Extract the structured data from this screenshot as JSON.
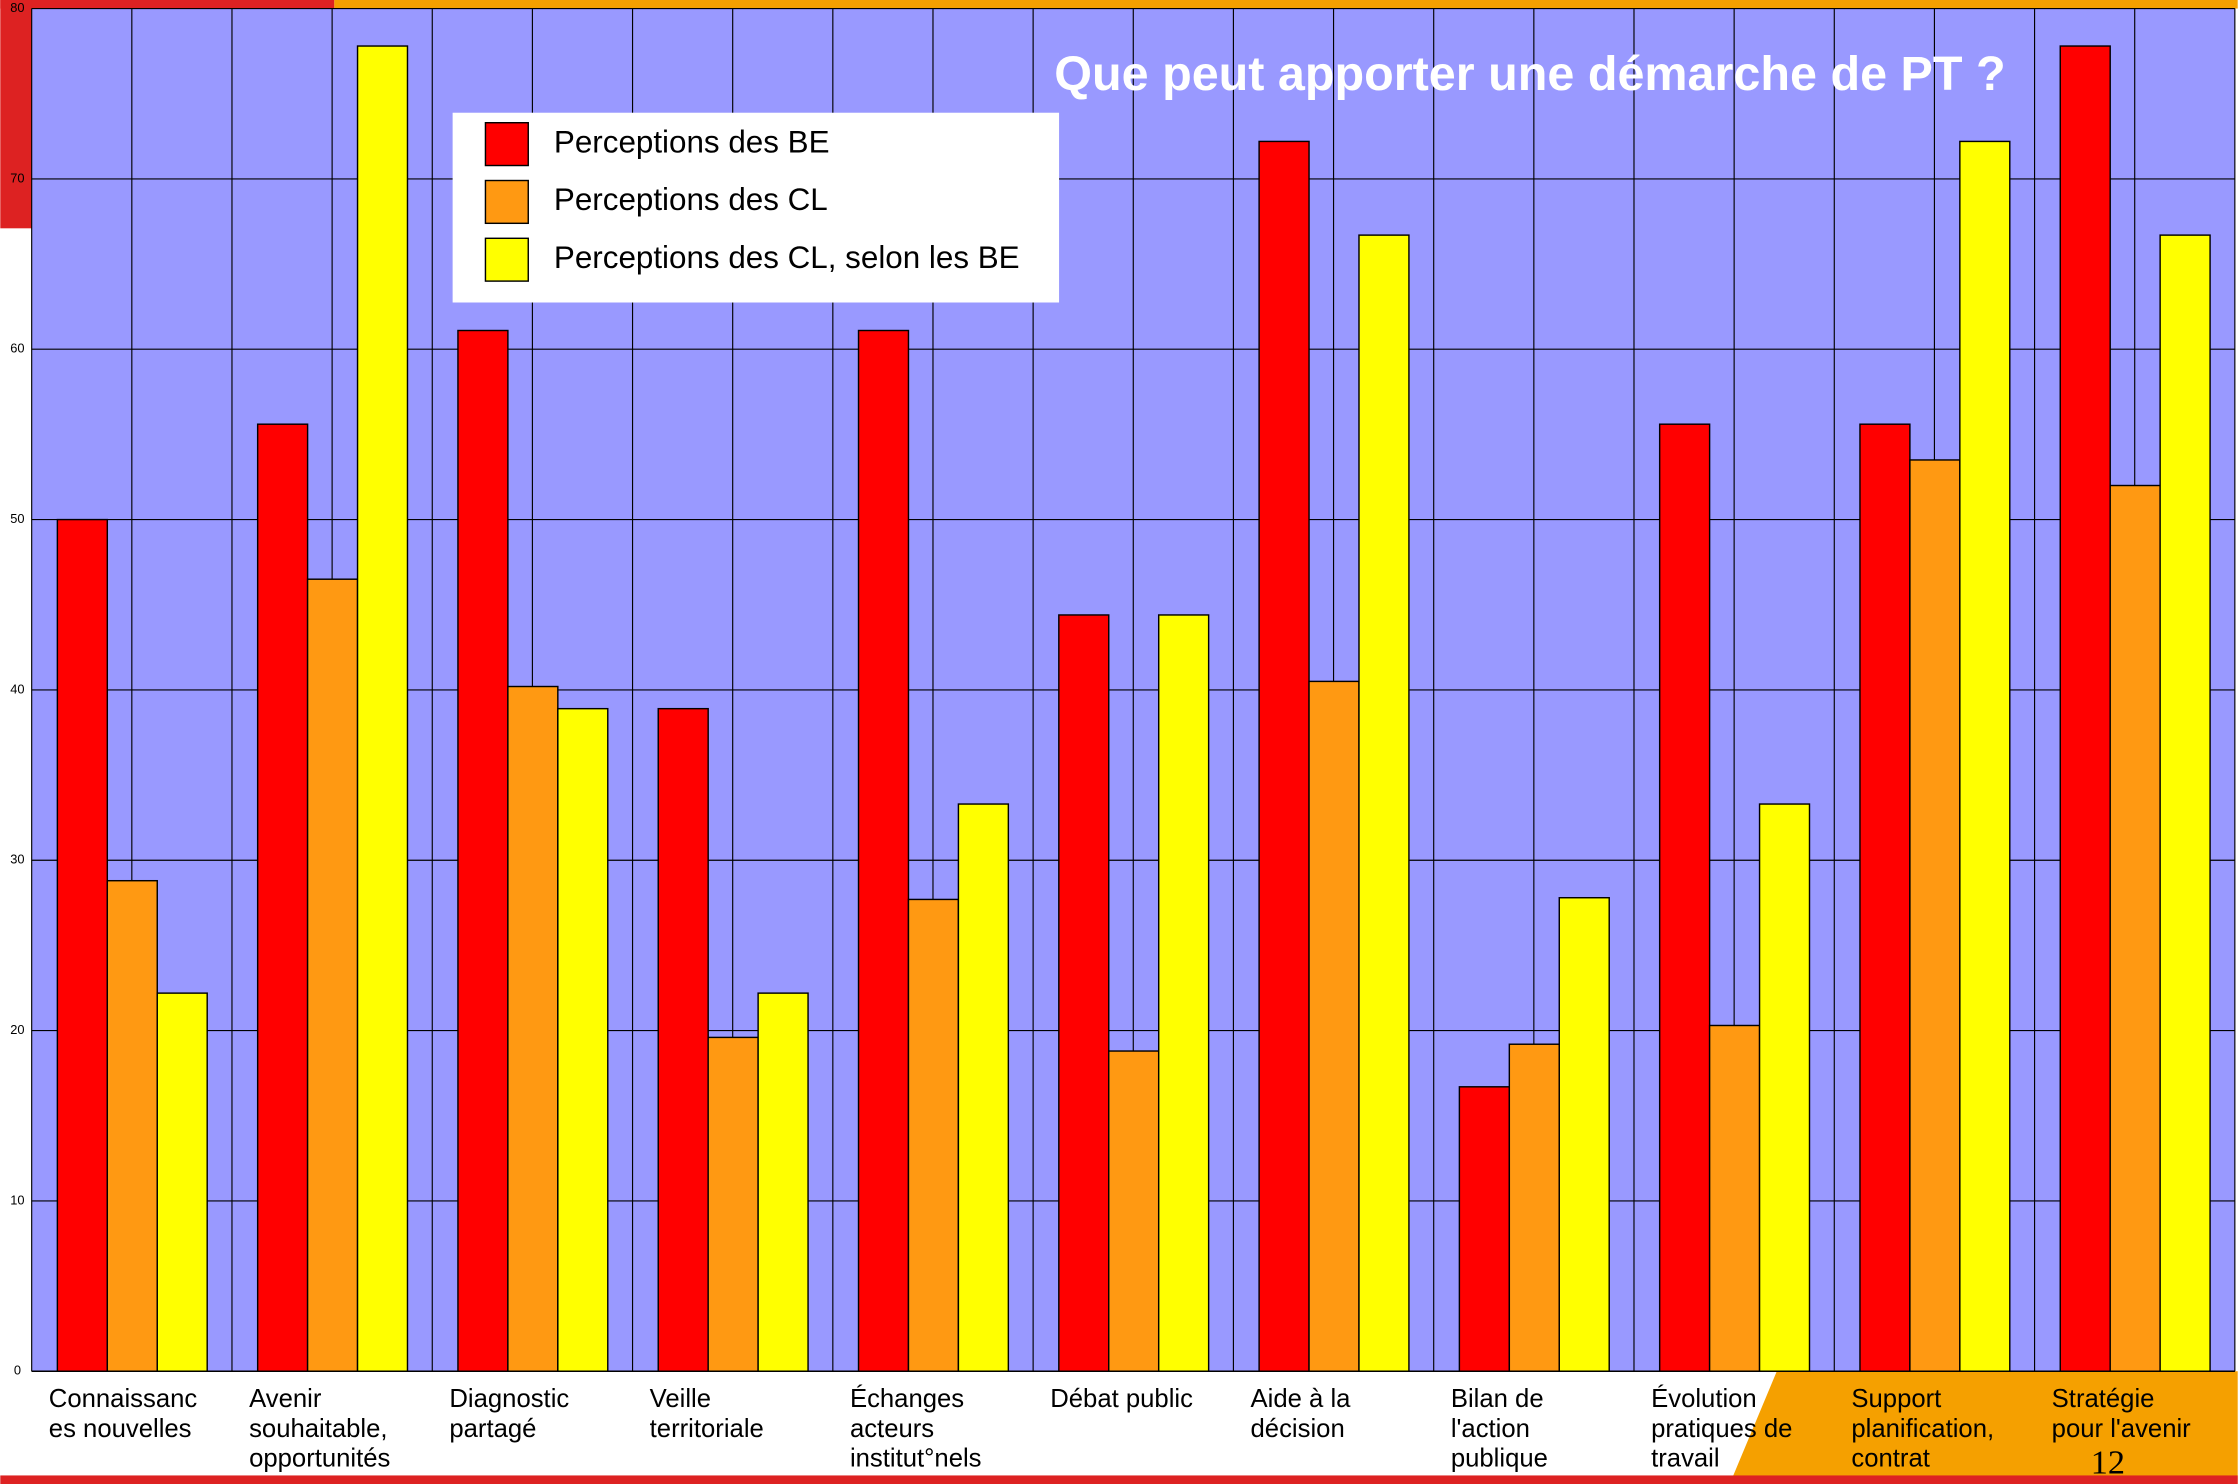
{
  "chart_data": {
    "type": "bar",
    "title": "Que peut apporter une démarche de PT ?",
    "page_number": "12",
    "categories": [
      "Connaissanc\nes nouvelles",
      "Avenir\nsouhaitable,\nopportunités",
      "Diagnostic\npartagé",
      "Veille\nterritoriale",
      "Échanges\nacteurs\ninstitut°nels",
      "Débat public",
      "Aide à la\ndécision",
      "Bilan de\nl'action\npublique",
      "Évolution\npratiques de\ntravail",
      "Support\nplanification,\ncontrat",
      "Stratégie\npour l'avenir"
    ],
    "series": [
      {
        "name": "Perceptions des BE",
        "color": "#ff0000",
        "values": [
          50,
          55.6,
          61.1,
          38.9,
          61.1,
          44.4,
          72.2,
          16.7,
          55.6,
          55.6,
          77.8
        ]
      },
      {
        "name": "Perceptions des CL",
        "color": "#ff9912",
        "values": [
          28.8,
          46.5,
          40.2,
          19.6,
          27.7,
          18.8,
          40.5,
          19.2,
          20.3,
          53.5,
          52
        ]
      },
      {
        "name": "Perceptions des CL, selon les BE",
        "color": "#ffff00",
        "values": [
          22.2,
          77.8,
          38.9,
          22.2,
          33.3,
          44.4,
          66.7,
          27.8,
          33.3,
          72.2,
          66.7
        ]
      }
    ],
    "ylim": [
      0,
      80
    ],
    "yticks": [
      0,
      10,
      20,
      30,
      40,
      50,
      60,
      70,
      80
    ],
    "grid": true,
    "plot_background": "#9999ff",
    "legend": "top-left"
  }
}
